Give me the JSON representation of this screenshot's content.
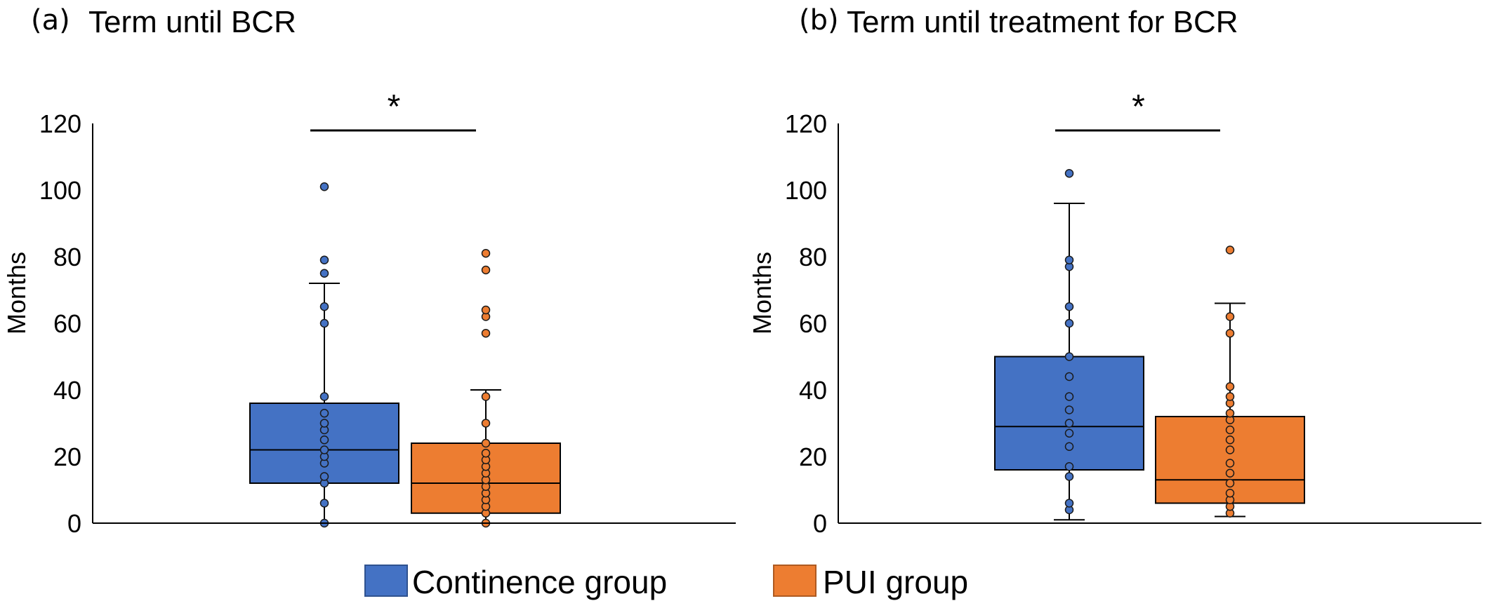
{
  "legend": {
    "items": [
      {
        "label": "Continence group",
        "color": "#4472C4"
      },
      {
        "label": "PUI group",
        "color": "#ED7D31"
      }
    ]
  },
  "chart_data": [
    {
      "type": "box",
      "panel": "(a)",
      "title": "Term until BCR",
      "ylabel": "Months",
      "ylim": [
        0,
        120
      ],
      "yticks": [
        0,
        20,
        40,
        60,
        80,
        100,
        120
      ],
      "significance": "*",
      "series": [
        {
          "name": "Continence group",
          "color": "#4472C4",
          "whisker_low": 0,
          "q1": 12,
          "median": 22,
          "q3": 36,
          "whisker_high": 72,
          "points": [
            0,
            6,
            12,
            14,
            18,
            20,
            22,
            25,
            28,
            30,
            33,
            38,
            60,
            65,
            75,
            79,
            101
          ]
        },
        {
          "name": "PUI group",
          "color": "#ED7D31",
          "whisker_low": 0,
          "q1": 3,
          "median": 12,
          "q3": 24,
          "whisker_high": 40,
          "points": [
            0,
            3,
            5,
            7,
            9,
            11,
            13,
            15,
            17,
            19,
            21,
            24,
            30,
            38,
            57,
            62,
            64,
            76,
            81
          ]
        }
      ]
    },
    {
      "type": "box",
      "panel": "(b)",
      "title": "Term until treatment for BCR",
      "ylabel": "Months",
      "ylim": [
        0,
        120
      ],
      "yticks": [
        0,
        20,
        40,
        60,
        80,
        100,
        120
      ],
      "significance": "*",
      "series": [
        {
          "name": "Continence group",
          "color": "#4472C4",
          "whisker_low": 1,
          "q1": 16,
          "median": 29,
          "q3": 50,
          "whisker_high": 96,
          "points": [
            4,
            6,
            14,
            17,
            23,
            27,
            30,
            34,
            38,
            44,
            50,
            60,
            65,
            77,
            79,
            105
          ]
        },
        {
          "name": "PUI group",
          "color": "#ED7D31",
          "whisker_low": 2,
          "q1": 6,
          "median": 13,
          "q3": 32,
          "whisker_high": 66,
          "points": [
            3,
            5,
            7,
            9,
            12,
            15,
            18,
            22,
            25,
            28,
            31,
            33,
            36,
            38,
            41,
            57,
            62,
            82
          ]
        }
      ]
    }
  ]
}
